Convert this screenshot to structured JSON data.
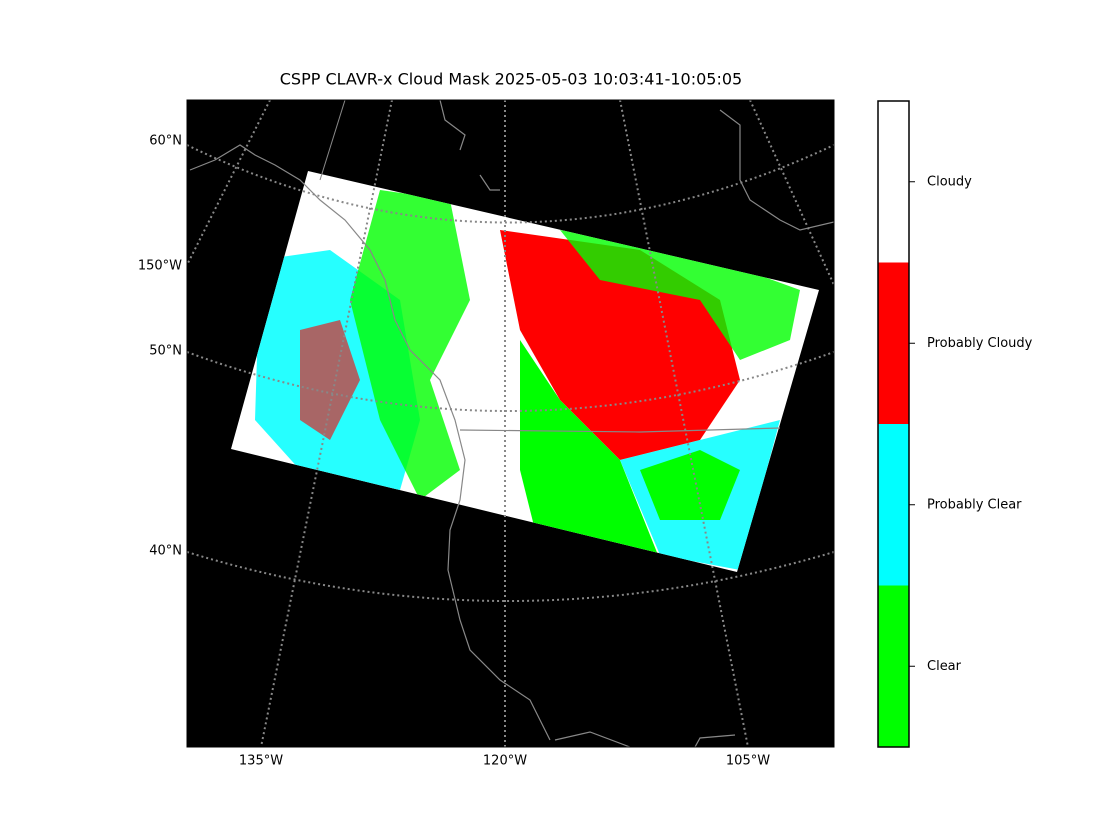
{
  "title": "CSPP CLAVR-x Cloud Mask 2025-05-03 10:03:41-10:05:05",
  "map": {
    "lat_labels": [
      "60°N",
      "150°W",
      "50°N",
      "40°N"
    ],
    "lon_labels": [
      "135°W",
      "120°W",
      "105°W"
    ]
  },
  "colorbar": {
    "classes": [
      {
        "label": "Clear",
        "color": "#00ff00"
      },
      {
        "label": "Probably Clear",
        "color": "#00ffff"
      },
      {
        "label": "Probably Cloudy",
        "color": "#ff0000"
      },
      {
        "label": "Cloudy",
        "color": "#ffffff"
      }
    ]
  }
}
